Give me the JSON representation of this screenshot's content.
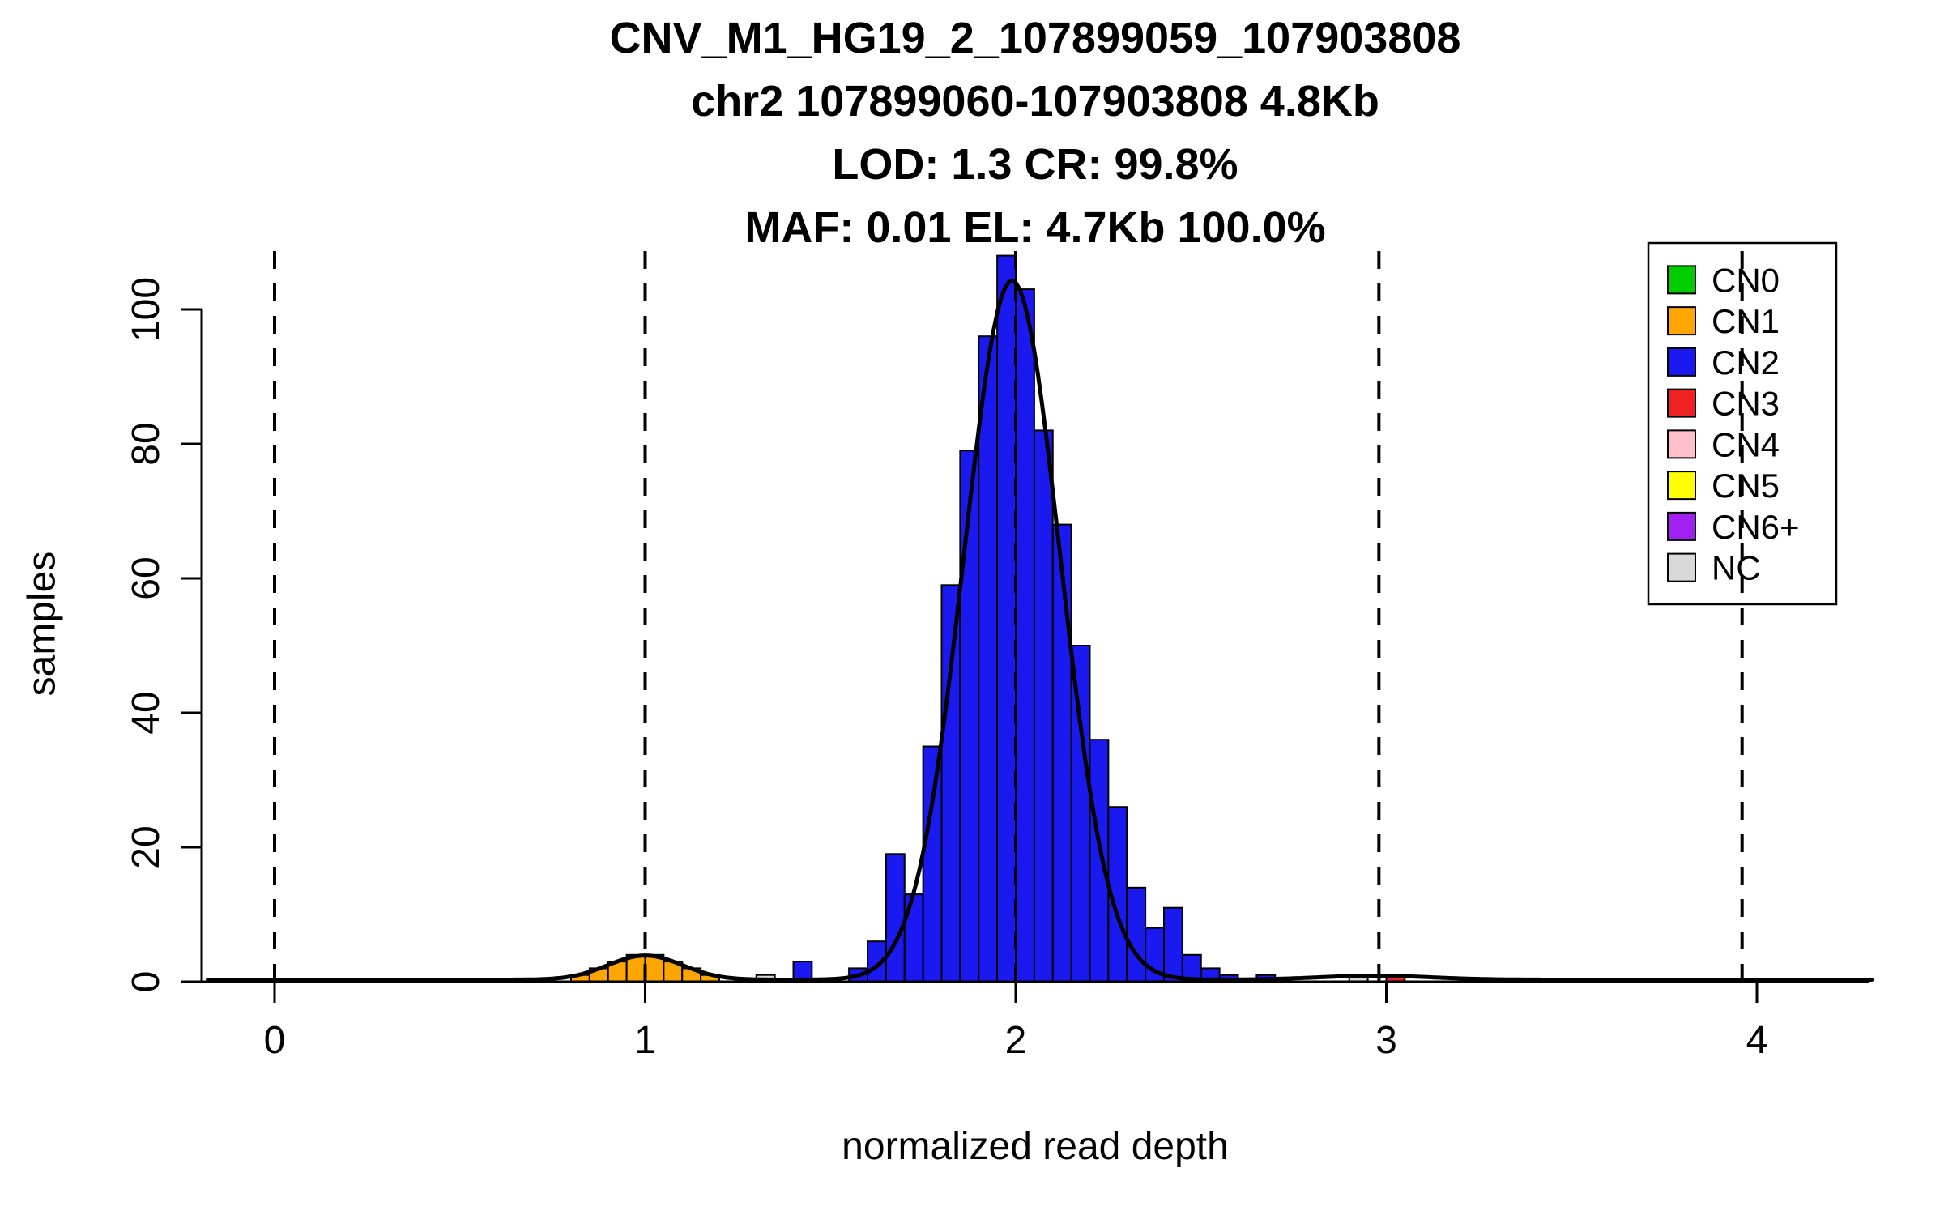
{
  "chart_data": {
    "type": "bar",
    "subtype": "histogram-with-density",
    "title_lines": [
      "CNV_M1_HG19_2_107899059_107903808",
      "chr2 107899060-107903808 4.8Kb",
      "LOD: 1.3 CR: 99.8%",
      "MAF: 0.01 EL: 4.7Kb 100.0%"
    ],
    "xlabel": "normalized read depth",
    "ylabel": "samples",
    "x_ticks": [
      0,
      1,
      2,
      3,
      4
    ],
    "y_ticks": [
      0,
      20,
      40,
      60,
      80,
      100
    ],
    "xlim": [
      -0.2,
      4.32
    ],
    "ylim": [
      0,
      110
    ],
    "bin_width": 0.05,
    "grid": false,
    "legend_position": "top-right",
    "colors": {
      "CN0": "#00CD00",
      "CN1": "#FFA500",
      "CN2": "#1A1AF0",
      "CN3": "#EE2020",
      "CN4": "#FFC0CB",
      "CN5": "#FFFF00",
      "CN6+": "#A020F0",
      "NC": "#D9D9D9"
    },
    "legend_entries": [
      {
        "label": "CN0",
        "color": "#00CD00"
      },
      {
        "label": "CN1",
        "color": "#FFA500"
      },
      {
        "label": "CN2",
        "color": "#1A1AF0"
      },
      {
        "label": "CN3",
        "color": "#EE2020"
      },
      {
        "label": "CN4",
        "color": "#FFC0CB"
      },
      {
        "label": "CN5",
        "color": "#FFFF00"
      },
      {
        "label": "CN6+",
        "color": "#A020F0"
      },
      {
        "label": "NC",
        "color": "#D9D9D9"
      }
    ],
    "dashed_lines_x": [
      0,
      1,
      2,
      2.98,
      3.96
    ],
    "bars": [
      {
        "x": 0.8,
        "h": 1,
        "cn": "CN1"
      },
      {
        "x": 0.85,
        "h": 2,
        "cn": "CN1"
      },
      {
        "x": 0.9,
        "h": 3,
        "cn": "CN1"
      },
      {
        "x": 0.95,
        "h": 4,
        "cn": "CN1"
      },
      {
        "x": 1.0,
        "h": 4,
        "cn": "CN1"
      },
      {
        "x": 1.05,
        "h": 3,
        "cn": "CN1"
      },
      {
        "x": 1.1,
        "h": 2,
        "cn": "CN1"
      },
      {
        "x": 1.15,
        "h": 1,
        "cn": "CN1"
      },
      {
        "x": 1.3,
        "h": 1,
        "cn": "NC"
      },
      {
        "x": 1.4,
        "h": 3,
        "cn": "CN2"
      },
      {
        "x": 1.55,
        "h": 2,
        "cn": "CN2"
      },
      {
        "x": 1.6,
        "h": 6,
        "cn": "CN2"
      },
      {
        "x": 1.65,
        "h": 19,
        "cn": "CN2"
      },
      {
        "x": 1.7,
        "h": 13,
        "cn": "CN2"
      },
      {
        "x": 1.75,
        "h": 35,
        "cn": "CN2"
      },
      {
        "x": 1.8,
        "h": 59,
        "cn": "CN2"
      },
      {
        "x": 1.85,
        "h": 79,
        "cn": "CN2"
      },
      {
        "x": 1.9,
        "h": 96,
        "cn": "CN2"
      },
      {
        "x": 1.95,
        "h": 108,
        "cn": "CN2"
      },
      {
        "x": 2.0,
        "h": 103,
        "cn": "CN2"
      },
      {
        "x": 2.05,
        "h": 82,
        "cn": "CN2"
      },
      {
        "x": 2.1,
        "h": 68,
        "cn": "CN2"
      },
      {
        "x": 2.15,
        "h": 50,
        "cn": "CN2"
      },
      {
        "x": 2.2,
        "h": 36,
        "cn": "CN2"
      },
      {
        "x": 2.25,
        "h": 26,
        "cn": "CN2"
      },
      {
        "x": 2.3,
        "h": 14,
        "cn": "CN2"
      },
      {
        "x": 2.35,
        "h": 8,
        "cn": "CN2"
      },
      {
        "x": 2.4,
        "h": 11,
        "cn": "CN2"
      },
      {
        "x": 2.45,
        "h": 4,
        "cn": "CN2"
      },
      {
        "x": 2.5,
        "h": 2,
        "cn": "CN2"
      },
      {
        "x": 2.55,
        "h": 1,
        "cn": "CN2"
      },
      {
        "x": 2.65,
        "h": 1,
        "cn": "CN2"
      },
      {
        "x": 2.9,
        "h": 1,
        "cn": "NC"
      },
      {
        "x": 3.0,
        "h": 1,
        "cn": "CN3"
      }
    ],
    "density_curve": {
      "baseline": 0.3,
      "components": [
        {
          "amp": 3.6,
          "mean": 1.0,
          "sd": 0.1
        },
        {
          "amp": 104,
          "mean": 1.99,
          "sd": 0.13
        },
        {
          "amp": 0.6,
          "mean": 2.97,
          "sd": 0.15
        }
      ]
    }
  }
}
